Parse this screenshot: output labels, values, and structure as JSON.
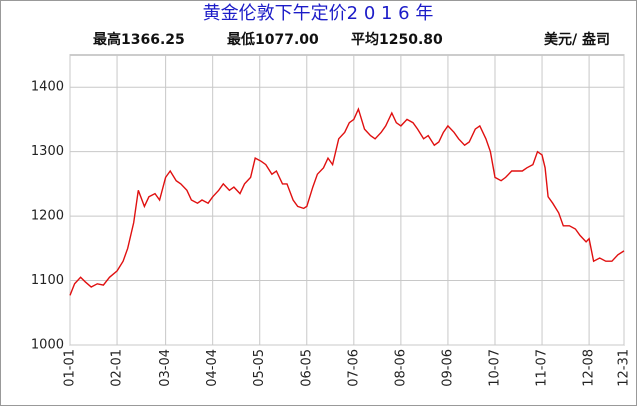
{
  "chart_data": {
    "type": "line",
    "title": "黄金伦敦下午定价2 0 1 6 年",
    "stats": [
      "最高1366.25",
      "最低1077.00",
      "平均1250.80"
    ],
    "unit": "美元/ 盎司",
    "xlim": [
      0,
      365
    ],
    "xticks": [
      {
        "value": 0,
        "label": "01-01"
      },
      {
        "value": 31,
        "label": "02-01"
      },
      {
        "value": 63,
        "label": "03-04"
      },
      {
        "value": 94,
        "label": "04-04"
      },
      {
        "value": 125,
        "label": "05-05"
      },
      {
        "value": 156,
        "label": "06-05"
      },
      {
        "value": 187,
        "label": "07-06"
      },
      {
        "value": 218,
        "label": "08-06"
      },
      {
        "value": 249,
        "label": "09-06"
      },
      {
        "value": 280,
        "label": "10-07"
      },
      {
        "value": 311,
        "label": "11-07"
      },
      {
        "value": 342,
        "label": "12-08"
      },
      {
        "value": 365,
        "label": "12-31"
      }
    ],
    "ylim": [
      1000,
      1450
    ],
    "yticks": [
      1000,
      1100,
      1200,
      1300,
      1400
    ],
    "grid": true,
    "series": [
      {
        "color": "#e01010",
        "x": [
          0,
          3,
          7,
          10,
          14,
          18,
          22,
          26,
          31,
          35,
          38,
          42,
          45,
          49,
          52,
          56,
          59,
          63,
          66,
          70,
          73,
          77,
          80,
          84,
          87,
          91,
          94,
          98,
          101,
          105,
          108,
          112,
          115,
          119,
          122,
          126,
          129,
          133,
          136,
          140,
          143,
          147,
          150,
          154,
          156,
          160,
          163,
          167,
          170,
          173,
          177,
          181,
          184,
          187,
          190,
          194,
          198,
          201,
          205,
          208,
          212,
          215,
          218,
          222,
          226,
          229,
          233,
          236,
          240,
          243,
          246,
          249,
          253,
          256,
          260,
          263,
          267,
          270,
          274,
          277,
          280,
          284,
          287,
          291,
          294,
          298,
          301,
          305,
          308,
          311,
          313,
          315,
          318,
          322,
          325,
          329,
          333,
          336,
          340,
          342,
          345,
          349,
          353,
          357,
          361,
          365
        ],
        "values": [
          1077,
          1095,
          1105,
          1098,
          1090,
          1095,
          1093,
          1105,
          1115,
          1130,
          1150,
          1190,
          1240,
          1215,
          1230,
          1235,
          1225,
          1260,
          1270,
          1255,
          1250,
          1240,
          1225,
          1220,
          1225,
          1220,
          1230,
          1240,
          1250,
          1240,
          1245,
          1235,
          1250,
          1260,
          1290,
          1285,
          1280,
          1265,
          1270,
          1250,
          1250,
          1225,
          1215,
          1212,
          1215,
          1245,
          1265,
          1275,
          1290,
          1280,
          1320,
          1330,
          1345,
          1350,
          1366,
          1335,
          1325,
          1320,
          1330,
          1340,
          1360,
          1345,
          1340,
          1350,
          1345,
          1335,
          1320,
          1325,
          1310,
          1315,
          1330,
          1340,
          1330,
          1320,
          1310,
          1315,
          1335,
          1340,
          1320,
          1300,
          1260,
          1255,
          1260,
          1270,
          1270,
          1270,
          1275,
          1280,
          1300,
          1295,
          1275,
          1230,
          1220,
          1205,
          1185,
          1185,
          1180,
          1170,
          1160,
          1165,
          1130,
          1135,
          1130,
          1130,
          1140,
          1146
        ]
      }
    ]
  }
}
